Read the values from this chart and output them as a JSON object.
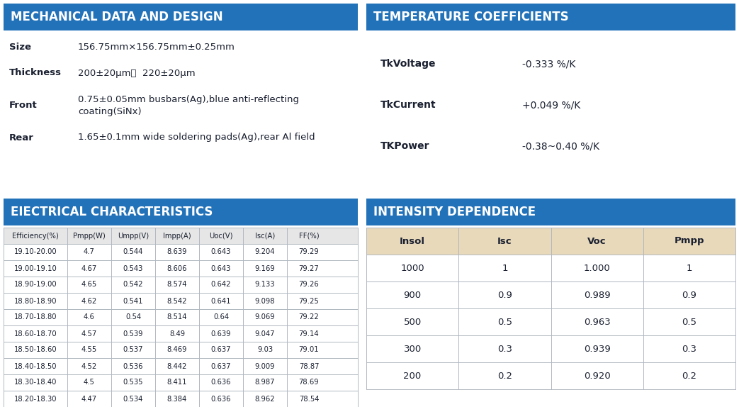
{
  "header_bg": "#2272b9",
  "header_text_color": "#ffffff",
  "body_bg": "#ffffff",
  "table_line_color": "#b0b8c0",
  "text_color_dark": "#1a2030",
  "mech_title": "EIECTRICAL CHARACTERISTICS",
  "mech_title_real": "MECHANICAL DATA AND DESIGN",
  "mech_rows": [
    [
      "Size",
      "156.75mm×156.75mm±0.25mm"
    ],
    [
      "Thickness",
      "200±20μm；  220±20μm"
    ],
    [
      "Front",
      "0.75±0.05mm busbars(Ag),blue anti-reflecting\ncoating(SiNx)"
    ],
    [
      "Rear",
      "1.65±0.1mm wide soldering pads(Ag),rear Al field"
    ]
  ],
  "temp_title": "TEMPERATURE COEFFICIENTS",
  "temp_rows": [
    [
      "TkVoltage",
      "-0.333 %/K"
    ],
    [
      "TkCurrent",
      "+0.049 %/K"
    ],
    [
      "TKPower",
      "-0.38~0.40 %/K"
    ]
  ],
  "elec_title": "EIECTRICAL CHARACTERISTICS",
  "elec_headers": [
    "Efficiency(%)",
    "Pmpp(W)",
    "Umpp(V)",
    "Impp(A)",
    "Uoc(V)",
    "Isc(A)",
    "FF(%)"
  ],
  "elec_col_widths": [
    90,
    62,
    62,
    62,
    62,
    62,
    62
  ],
  "elec_rows": [
    [
      "19.10-20.00",
      "4.7",
      "0.544",
      "8.639",
      "0.643",
      "9.204",
      "79.29"
    ],
    [
      "19.00-19.10",
      "4.67",
      "0.543",
      "8.606",
      "0.643",
      "9.169",
      "79.27"
    ],
    [
      "18.90-19.00",
      "4.65",
      "0.542",
      "8.574",
      "0.642",
      "9.133",
      "79.26"
    ],
    [
      "18.80-18.90",
      "4.62",
      "0.541",
      "8.542",
      "0.641",
      "9.098",
      "79.25"
    ],
    [
      "18.70-18.80",
      "4.6",
      "0.54",
      "8.514",
      "0.64",
      "9.069",
      "79.22"
    ],
    [
      "18.60-18.70",
      "4.57",
      "0.539",
      "8.49",
      "0.639",
      "9.047",
      "79.14"
    ],
    [
      "18.50-18.60",
      "4.55",
      "0.537",
      "8.469",
      "0.637",
      "9.03",
      "79.01"
    ],
    [
      "18.40-18.50",
      "4.52",
      "0.536",
      "8.442",
      "0.637",
      "9.009",
      "78.87"
    ],
    [
      "18.30-18.40",
      "4.5",
      "0.535",
      "8.411",
      "0.636",
      "8.987",
      "78.69"
    ],
    [
      "18.20-18.30",
      "4.47",
      "0.534",
      "8.384",
      "0.636",
      "8.962",
      "78.54"
    ]
  ],
  "intens_title": "INTENSITY DEPENDENCE",
  "intens_headers": [
    "Insol",
    "Isc",
    "Voc",
    "Pmpp"
  ],
  "intens_header_bg": "#e8d9bb",
  "intens_rows": [
    [
      "1000",
      "1",
      "1.000",
      "1"
    ],
    [
      "900",
      "0.9",
      "0.989",
      "0.9"
    ],
    [
      "500",
      "0.5",
      "0.963",
      "0.5"
    ],
    [
      "300",
      "0.3",
      "0.939",
      "0.3"
    ],
    [
      "200",
      "0.2",
      "0.920",
      "0.2"
    ]
  ]
}
